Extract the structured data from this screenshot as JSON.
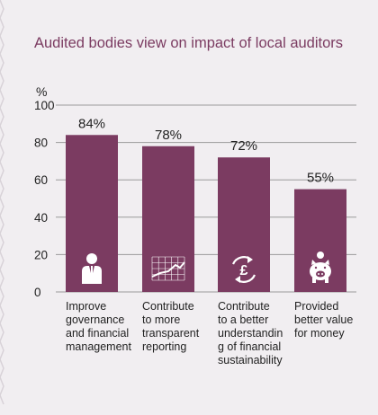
{
  "chart_data": {
    "type": "bar",
    "title": "Audited bodies view on impact of local auditors",
    "ylabel": "%",
    "ylim": [
      0,
      100
    ],
    "yticks": [
      0,
      20,
      40,
      60,
      80,
      100
    ],
    "grid": true,
    "categories": [
      [
        "Improve",
        "governance",
        "and financial",
        "management"
      ],
      [
        "Contribute",
        "to more",
        "transparent",
        "reporting"
      ],
      [
        "Contribute",
        "to a better",
        "understandin",
        "g of financial",
        "sustainability"
      ],
      [
        "Provided",
        "better value",
        "for money"
      ]
    ],
    "values": [
      84,
      78,
      72,
      55
    ],
    "value_labels": [
      "84%",
      "78%",
      "72%",
      "55%"
    ],
    "icons": [
      "person-in-suit-icon",
      "line-chart-icon",
      "pound-cycle-icon",
      "piggy-bank-icon"
    ],
    "colors": {
      "bar": "#7b3b61",
      "background": "#f1eef1",
      "text": "#222222",
      "title": "#7b3b61",
      "grid": "#9a9a9a",
      "icon": "#ffffff"
    }
  }
}
